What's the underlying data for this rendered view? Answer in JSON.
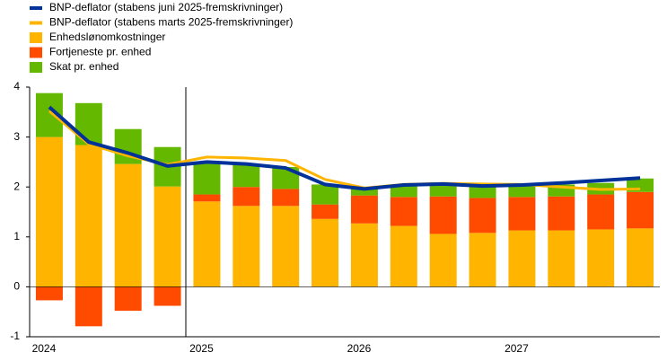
{
  "chart_data": {
    "type": "bar",
    "stacked": true,
    "categories": [
      "2024",
      null,
      null,
      null,
      "2025",
      null,
      null,
      null,
      "2026",
      null,
      null,
      null,
      "2027",
      null,
      null,
      null
    ],
    "series": [
      {
        "name": "BNP-deflator (stabens juni 2025-fremskrivninger)",
        "type": "line",
        "color": "#003299",
        "values": [
          3.6,
          2.9,
          2.68,
          2.42,
          2.5,
          2.46,
          2.38,
          2.05,
          1.96,
          2.04,
          2.06,
          2.02,
          2.04,
          2.08,
          2.13,
          2.18
        ]
      },
      {
        "name": "BNP-deflator (stabens marts 2025-fremskrivninger)",
        "type": "line",
        "color": "#ffb400",
        "values": [
          3.52,
          2.86,
          2.62,
          2.45,
          2.6,
          2.58,
          2.53,
          2.15,
          1.98,
          2.05,
          2.07,
          2.06,
          2.05,
          2.0,
          1.95,
          1.96
        ]
      },
      {
        "name": "Enhedslønomkostninger",
        "type": "bar",
        "color": "#ffb400",
        "values": [
          3.0,
          2.84,
          2.46,
          2.01,
          1.71,
          1.62,
          1.62,
          1.36,
          1.27,
          1.22,
          1.06,
          1.08,
          1.13,
          1.13,
          1.15,
          1.17
        ]
      },
      {
        "name": "Fortjeneste pr. enhed",
        "type": "bar",
        "color": "#ff4b00",
        "values": [
          -0.27,
          -0.79,
          -0.48,
          -0.38,
          0.14,
          0.38,
          0.34,
          0.29,
          0.56,
          0.58,
          0.75,
          0.7,
          0.67,
          0.68,
          0.7,
          0.73
        ]
      },
      {
        "name": "Skat pr. enhed",
        "type": "bar",
        "color": "#65b800",
        "values": [
          0.88,
          0.84,
          0.7,
          0.79,
          0.66,
          0.46,
          0.44,
          0.4,
          0.13,
          0.23,
          0.24,
          0.25,
          0.23,
          0.24,
          0.23,
          0.27
        ]
      }
    ],
    "ylim": [
      -1,
      4
    ],
    "yticks": [
      -1,
      0,
      1,
      2,
      3,
      4
    ],
    "legend": "top-left"
  }
}
